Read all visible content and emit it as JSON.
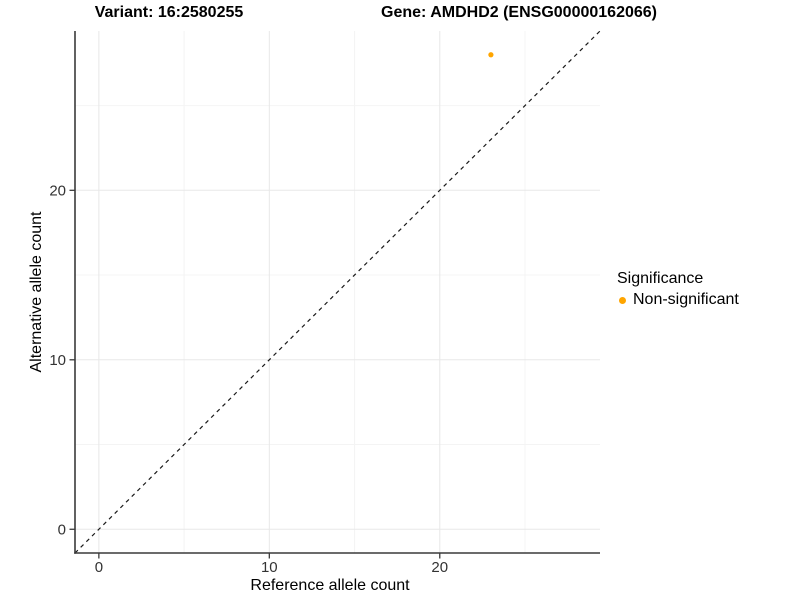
{
  "chart_data": {
    "type": "scatter",
    "titles": {
      "left": "Variant: 16:2580255",
      "right": "Gene: AMDHD2 (ENSG00000162066)"
    },
    "xlabel": "Reference allele count",
    "ylabel": "Alternative allele count",
    "xlim": [
      -1.4,
      29.4
    ],
    "ylim": [
      -1.4,
      29.4
    ],
    "x_major_ticks": [
      0,
      10,
      20
    ],
    "y_major_ticks": [
      0,
      10,
      20
    ],
    "x_minor_ticks": [
      5,
      15,
      25
    ],
    "y_minor_ticks": [
      5,
      15,
      25
    ],
    "grid": "major and minor, light gray on white",
    "legend_position": "right",
    "reference_line": {
      "type": "identity y=x",
      "style": "dashed"
    },
    "series": [
      {
        "name": "Non-significant",
        "color": "#FFA500",
        "points": [
          {
            "x": 23,
            "y": 28
          }
        ]
      }
    ]
  },
  "legend": {
    "title": "Significance",
    "items": [
      {
        "label": "Non-significant",
        "color": "#FFA500"
      }
    ]
  },
  "colors": {
    "background": "#FFFFFF",
    "point": "#FFA500",
    "grid_major": "#E8E8E8",
    "grid_minor": "#F4F4F4",
    "axis_line": "#3A3A3A",
    "tick_label": "#333333",
    "reference_line": "#1A1A1A",
    "title_text": "#000000"
  }
}
